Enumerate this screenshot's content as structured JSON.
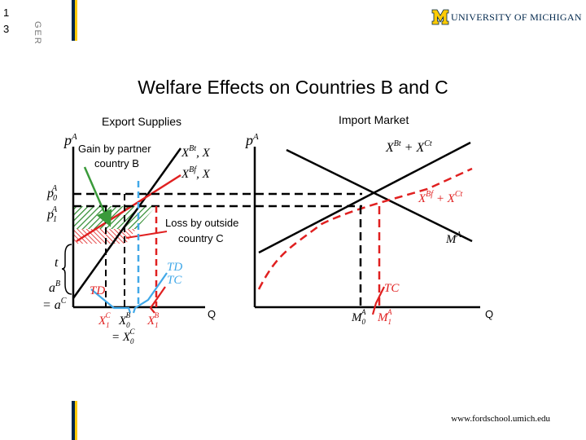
{
  "slide": {
    "number_line1": "1",
    "number_line2": "3",
    "side_label": "GER",
    "title": "Welfare Effects on Countries B and C",
    "university": "UNIVERSITY OF MICHIGAN",
    "footer_url": "www.fordschool.umich.edu"
  },
  "diagram": {
    "left_panel": {
      "title": "Export Supplies",
      "y_axis": "p",
      "y_axis_sup": "A",
      "x_axis": "Q",
      "curve_bt": "X",
      "curve_bt_sup": "Bt",
      "curve_bt_tail": ", X",
      "curve_bf": "X",
      "curve_bf_sup": "Bf",
      "curve_bf_tail": ", X",
      "p0": "p",
      "p0_sup": "A",
      "p0_sub": "0",
      "p1": "p",
      "p1_sup": "A",
      "p1_sub": "1",
      "t_label": "t",
      "aB": "a",
      "aB_sup": "B",
      "aC": "= a",
      "aC_sup": "C",
      "td_label": "TD",
      "td_tc_top": "TD",
      "td_tc_bottom": "TC",
      "gain_label_line1": "Gain by partner",
      "gain_label_line2": "country B",
      "loss_label_line1": "Loss by outside",
      "loss_label_line2": "country C",
      "x1c": "X",
      "x1c_sup": "C",
      "x1c_sub": "1",
      "x0b": "X",
      "x0b_sup": "B",
      "x0b_sub": "0",
      "x1b": "X",
      "x1b_sup": "B",
      "x1b_sub": "1",
      "x0c": "= X",
      "x0c_sup": "C",
      "x0c_sub": "0"
    },
    "right_panel": {
      "title": "Import Market",
      "y_axis": "p",
      "y_axis_sup": "A",
      "x_axis": "Q",
      "supply_t": "X",
      "supply_t_sup": "Bt",
      "supply_t_mid": " + X",
      "supply_t_sup2": "Ct",
      "supply_f": "X",
      "supply_f_sup": "Bf",
      "supply_f_mid": " + X",
      "supply_f_sup2": "Ct",
      "demand": "M",
      "demand_sup": "A",
      "tc_label": "TC",
      "m0": "M",
      "m0_sup": "A",
      "m0_sub": "0",
      "m1": "M",
      "m1_sup": "A",
      "m1_sub": "1"
    },
    "colors": {
      "black": "#000000",
      "red": "#e02020",
      "blue": "#41a8e8",
      "green": "#3a9a3a",
      "navy": "#00274c",
      "maize": "#ffcb05"
    }
  }
}
